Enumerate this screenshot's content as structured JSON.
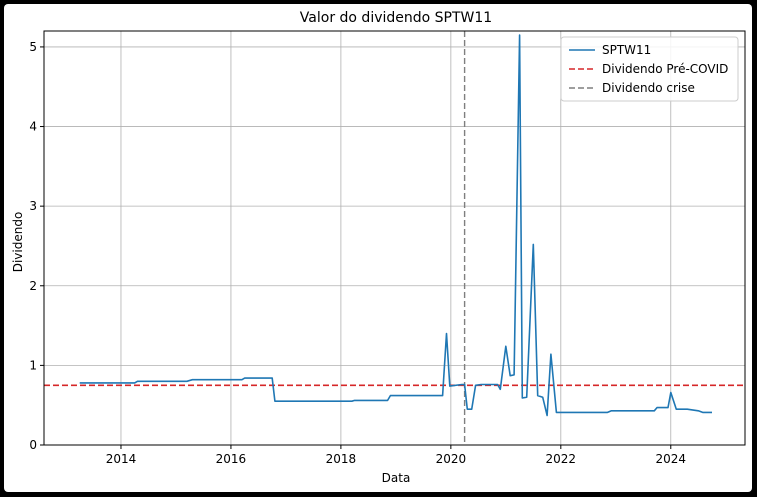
{
  "chart_data": {
    "type": "line",
    "title": "Valor do dividendo SPTW11",
    "xlabel": "Data",
    "ylabel": "Dividendo",
    "xlim": [
      2012.6,
      2025.35
    ],
    "ylim": [
      0,
      5.2
    ],
    "x_ticks": [
      2014,
      2016,
      2018,
      2020,
      2022,
      2024
    ],
    "x_tick_labels": [
      "2014",
      "2016",
      "2018",
      "2020",
      "2022",
      "2024"
    ],
    "y_ticks": [
      0,
      1,
      2,
      3,
      4,
      5
    ],
    "y_tick_labels": [
      "0",
      "1",
      "2",
      "3",
      "4",
      "5"
    ],
    "grid": true,
    "legend_position": "top-right",
    "series": [
      {
        "name": "SPTW11",
        "color": "#1f77b4",
        "style": "solid",
        "x": [
          2013.25,
          2014.25,
          2014.3,
          2015.2,
          2015.3,
          2016.2,
          2016.25,
          2016.75,
          2016.8,
          2018.2,
          2018.25,
          2018.85,
          2018.9,
          2019.85,
          2019.92,
          2019.98,
          2020.2,
          2020.25,
          2020.3,
          2020.38,
          2020.45,
          2020.55,
          2020.85,
          2020.9,
          2021.0,
          2021.08,
          2021.15,
          2021.25,
          2021.3,
          2021.38,
          2021.5,
          2021.58,
          2021.67,
          2021.75,
          2021.82,
          2021.92,
          2022.1,
          2022.85,
          2022.92,
          2023.7,
          2023.75,
          2023.95,
          2024.0,
          2024.1,
          2024.3,
          2024.5,
          2024.58,
          2024.75
        ],
        "y": [
          0.78,
          0.78,
          0.8,
          0.8,
          0.82,
          0.82,
          0.84,
          0.84,
          0.55,
          0.55,
          0.56,
          0.56,
          0.62,
          0.62,
          1.4,
          0.74,
          0.76,
          0.76,
          0.45,
          0.45,
          0.75,
          0.76,
          0.76,
          0.7,
          1.24,
          0.87,
          0.88,
          5.15,
          0.59,
          0.6,
          2.52,
          0.62,
          0.6,
          0.37,
          1.14,
          0.41,
          0.41,
          0.41,
          0.43,
          0.43,
          0.47,
          0.47,
          0.66,
          0.45,
          0.45,
          0.43,
          0.41,
          0.41
        ]
      },
      {
        "name": "Dividendo Pré-COVID",
        "color": "#d62728",
        "style": "dashed",
        "orientation": "horizontal",
        "value": 0.75
      },
      {
        "name": "Dividendo crise",
        "color": "#7f7f7f",
        "style": "dashed",
        "orientation": "vertical",
        "value": 2020.25
      }
    ]
  }
}
